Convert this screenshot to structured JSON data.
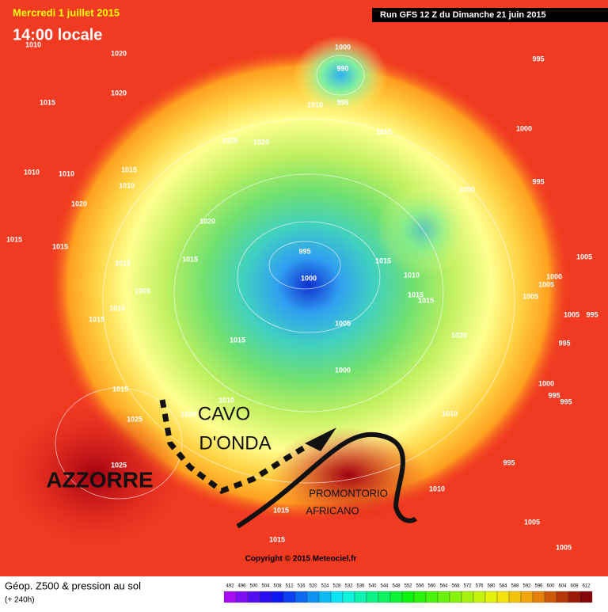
{
  "header": {
    "date": "Mercredi 1 juillet 2015",
    "time": "14:00 locale",
    "run": "Run GFS 12 Z du Dimanche 21 juin 2015"
  },
  "map": {
    "isobar_labels": [
      "1010",
      "1020",
      "1020",
      "1015",
      "1000",
      "990",
      "995",
      "1010",
      "1015",
      "1025",
      "1020",
      "1000",
      "995",
      "995",
      "1000",
      "1010",
      "1010",
      "1015",
      "1010",
      "1020",
      "1020",
      "1015",
      "1015",
      "1015",
      "1015",
      "995",
      "1000",
      "1015",
      "1010",
      "1005",
      "1010",
      "1015",
      "1015",
      "1015",
      "1005",
      "1020",
      "1015",
      "995",
      "1000",
      "1015",
      "1010",
      "1020",
      "1025",
      "1025",
      "1010",
      "995",
      "1010",
      "1005",
      "1015",
      "1015",
      "1005",
      "1005",
      "1000",
      "1005",
      "1005",
      "1005",
      "995",
      "1000",
      "995",
      "995"
    ],
    "annotations": {
      "trough_1": "CAVO",
      "trough_2": "D'ONDA",
      "high": "AZZORRE",
      "ridge_1": "PROMONTORIO",
      "ridge_2": "AFRICANO"
    },
    "copyright": "Copyright © 2015 Meteociel.fr"
  },
  "legend": {
    "title": "Géop. Z500 & pression au sol",
    "lead": "(+ 240h)",
    "ticks": [
      492,
      496,
      500,
      504,
      508,
      512,
      516,
      520,
      524,
      528,
      532,
      536,
      540,
      544,
      548,
      552,
      556,
      560,
      564,
      568,
      572,
      576,
      580,
      584,
      588,
      592,
      596,
      600,
      604,
      608,
      612
    ]
  }
}
